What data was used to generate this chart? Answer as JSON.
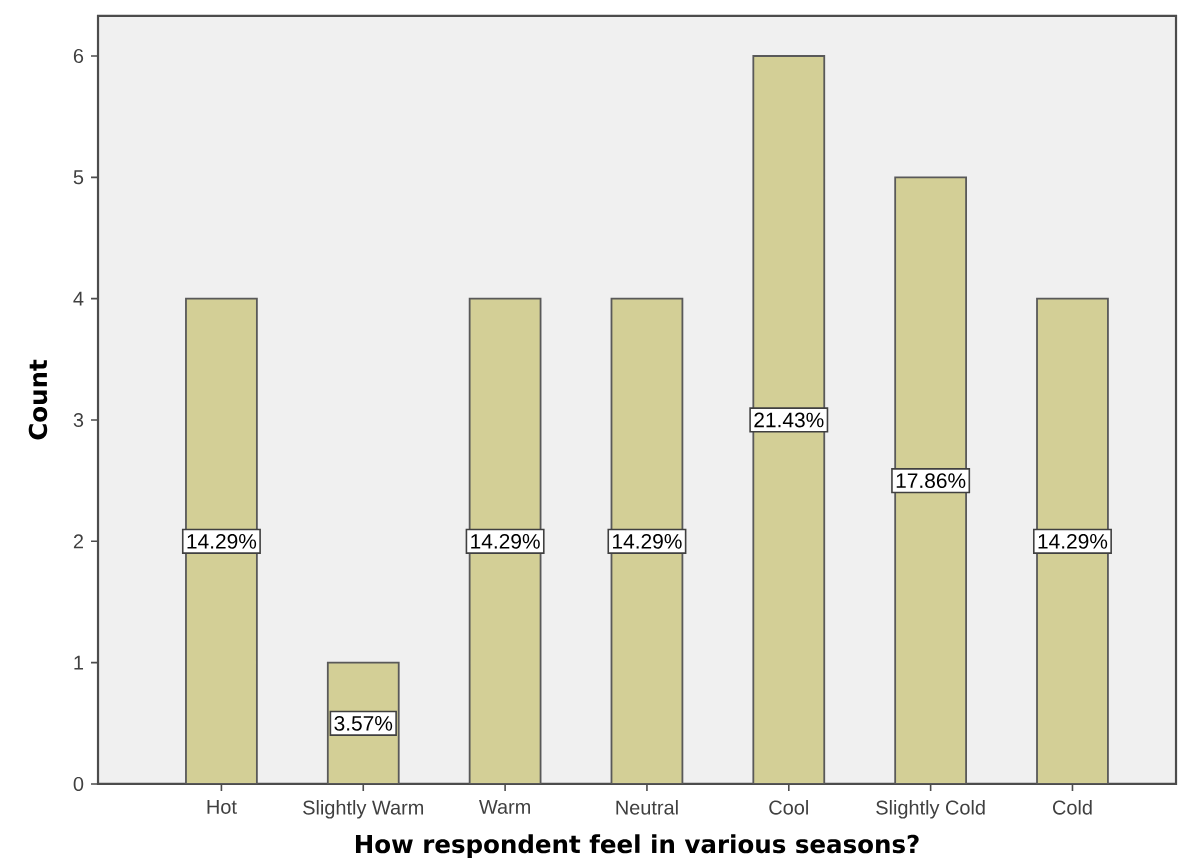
{
  "chart_data": {
    "type": "bar",
    "xlabel": "How respondent feel in various seasons?",
    "ylabel": "Count",
    "categories": [
      "Hot",
      "Slightly Warm",
      "Warm",
      "Neutral",
      "Cool",
      "Slightly Cold",
      "Cold"
    ],
    "values": [
      4,
      1,
      4,
      4,
      6,
      5,
      4
    ],
    "annotations": [
      "14.29%",
      "3.57%",
      "14.29%",
      "14.29%",
      "21.43%",
      "17.86%",
      "14.29%"
    ],
    "color": "#d3cf96",
    "ylim": [
      0,
      6.33
    ],
    "yticks": [
      0,
      1,
      2,
      3,
      4,
      5,
      6
    ]
  }
}
